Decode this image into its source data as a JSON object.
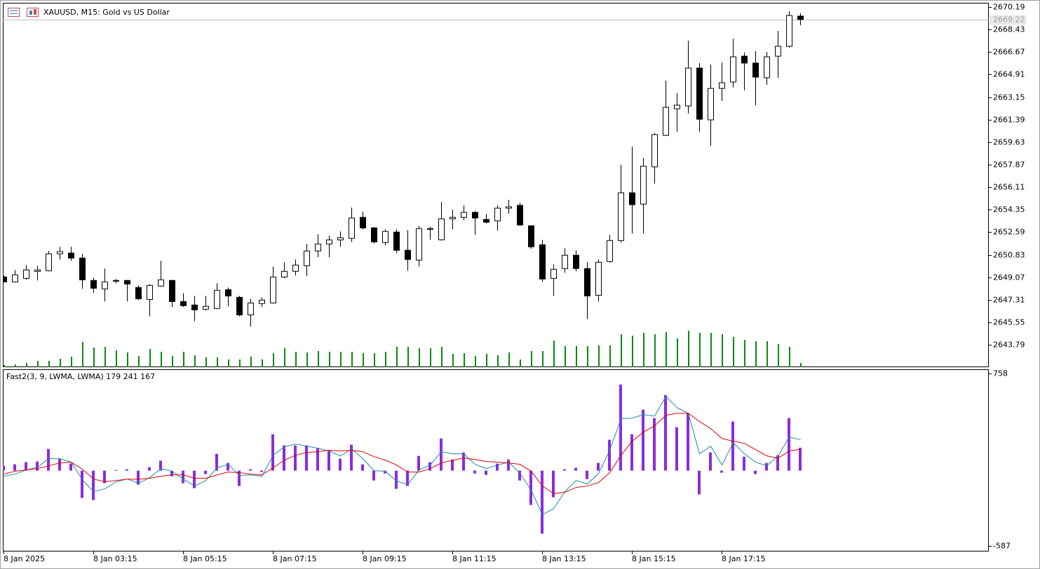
{
  "header": {
    "symbol_title": "XAUUSD, M15:  Gold vs US Dollar"
  },
  "chart_data": [
    {
      "type": "candlestick",
      "categories": [
        "8 Jan 2025",
        null,
        null,
        null,
        null,
        null,
        null,
        null,
        "8 Jan 03:15",
        null,
        null,
        null,
        null,
        null,
        null,
        null,
        "8 Jan 05:15",
        null,
        null,
        null,
        null,
        null,
        null,
        null,
        "8 Jan 07:15",
        null,
        null,
        null,
        null,
        null,
        null,
        null,
        "8 Jan 09:15",
        null,
        null,
        null,
        null,
        null,
        null,
        null,
        "8 Jan 11:15",
        null,
        null,
        null,
        null,
        null,
        null,
        null,
        "8 Jan 13:15",
        null,
        null,
        null,
        null,
        null,
        null,
        null,
        "8 Jan 15:15",
        null,
        null,
        null,
        null,
        null,
        null,
        null,
        "8 Jan 17:15",
        null,
        null,
        null,
        null,
        null,
        null,
        null
      ],
      "open": [
        2649.09,
        2648.71,
        2648.98,
        2649.53,
        2649.58,
        2650.9,
        2650.96,
        2650.57,
        2648.82,
        2648.16,
        2648.82,
        2648.82,
        2648.27,
        2647.33,
        2648.38,
        2648.82,
        2647.17,
        2646.9,
        2646.57,
        2646.63,
        2648.1,
        2647.5,
        2646.13,
        2647.01,
        2647.06,
        2649.09,
        2649.53,
        2649.97,
        2651.12,
        2651.67,
        2651.99,
        2652.11,
        2653.75,
        2652.93,
        2651.78,
        2652.6,
        2651.18,
        2650.41,
        2652.82,
        2652.0,
        2653.64,
        2653.75,
        2654.14,
        2653.59,
        2653.48,
        2654.47,
        2654.69,
        2653.09,
        2651.61,
        2648.98,
        2649.75,
        2650.79,
        2649.75,
        2647.66,
        2650.3,
        2651.94,
        2655.67,
        2654.79,
        2657.7,
        2660.16,
        2662.24,
        2662.46,
        2665.42,
        2661.37,
        2663.83,
        2664.33,
        2666.35,
        2665.81,
        2664.66,
        2666.35,
        2667.12,
        2669.48
      ],
      "high": [
        2649.2,
        2649.64,
        2650.02,
        2649.97,
        2651.12,
        2651.45,
        2651.45,
        2650.9,
        2649.04,
        2649.75,
        2648.93,
        2648.85,
        2648.43,
        2648.54,
        2650.35,
        2648.87,
        2647.83,
        2647.61,
        2647.61,
        2648.6,
        2648.27,
        2647.61,
        2647.39,
        2647.5,
        2649.91,
        2650.24,
        2650.46,
        2651.67,
        2652.43,
        2652.32,
        2652.65,
        2654.52,
        2654.19,
        2652.98,
        2652.82,
        2652.82,
        2652.76,
        2653.09,
        2653.04,
        2654.96,
        2654.36,
        2654.69,
        2654.25,
        2654.03,
        2654.69,
        2655.12,
        2654.9,
        2653.12,
        2651.99,
        2650.08,
        2651.34,
        2651.18,
        2650.24,
        2650.46,
        2652.38,
        2657.86,
        2659.29,
        2658.41,
        2660.33,
        2664.44,
        2663.45,
        2667.56,
        2665.81,
        2665.7,
        2665.86,
        2667.72,
        2666.63,
        2666.74,
        2666.68,
        2668.33,
        2669.86,
        2669.7
      ],
      "low": [
        2648.65,
        2648.65,
        2648.87,
        2648.82,
        2649.53,
        2650.46,
        2650.35,
        2648.16,
        2647.83,
        2647.17,
        2648.6,
        2647.17,
        2647.28,
        2646.02,
        2648.32,
        2646.74,
        2646.74,
        2645.64,
        2646.48,
        2646.57,
        2646.79,
        2646.02,
        2645.2,
        2646.74,
        2647.01,
        2648.98,
        2649.2,
        2649.15,
        2650.63,
        2650.63,
        2651.45,
        2651.83,
        2652.82,
        2651.72,
        2651.56,
        2650.96,
        2649.58,
        2649.91,
        2652.0,
        2651.94,
        2652.82,
        2653.53,
        2652.38,
        2653.26,
        2652.71,
        2654.03,
        2653.1,
        2651.29,
        2648.71,
        2647.61,
        2649.42,
        2649.53,
        2645.8,
        2647.17,
        2650.2,
        2651.78,
        2652.49,
        2652.49,
        2656.38,
        2660.11,
        2660.44,
        2661.86,
        2660.44,
        2659.34,
        2662.85,
        2663.89,
        2663.67,
        2662.52,
        2664.11,
        2664.66,
        2667.01,
        2668.77
      ],
      "close": [
        2648.71,
        2649.26,
        2649.64,
        2649.64,
        2650.9,
        2651.07,
        2650.57,
        2648.87,
        2648.21,
        2648.71,
        2648.76,
        2648.54,
        2647.39,
        2648.43,
        2648.87,
        2647.17,
        2646.85,
        2646.52,
        2646.79,
        2648.05,
        2647.61,
        2646.13,
        2647.06,
        2647.28,
        2649.09,
        2649.53,
        2650.02,
        2651.12,
        2651.67,
        2651.99,
        2652.16,
        2653.7,
        2652.93,
        2651.83,
        2652.65,
        2651.18,
        2650.46,
        2652.87,
        2652.87,
        2653.64,
        2653.75,
        2654.14,
        2653.7,
        2653.37,
        2654.47,
        2654.58,
        2653.15,
        2651.45,
        2648.93,
        2649.69,
        2650.79,
        2649.75,
        2647.61,
        2650.24,
        2651.94,
        2655.67,
        2654.74,
        2657.75,
        2660.22,
        2662.35,
        2662.52,
        2665.42,
        2661.42,
        2663.83,
        2664.27,
        2666.3,
        2665.81,
        2664.71,
        2666.3,
        2667.12,
        2669.53,
        2669.22
      ],
      "up_color": "#ffffff",
      "down_color": "#000000",
      "wick_color": "#000000",
      "current_price": 2669.22,
      "ylim": [
        2642.04,
        2670.52
      ],
      "yticks": [
        2670.19,
        2668.43,
        2666.67,
        2664.91,
        2663.15,
        2661.39,
        2659.63,
        2657.87,
        2656.11,
        2654.35,
        2652.59,
        2650.83,
        2649.07,
        2647.31,
        2645.55,
        2643.79
      ],
      "grid": false
    },
    {
      "type": "bar",
      "color": "#0b8a0b",
      "ylim": [
        0,
        100
      ],
      "values": [
        3,
        4,
        6,
        9,
        9,
        12,
        15,
        36,
        28,
        29,
        24,
        21,
        16,
        26,
        22,
        16,
        22,
        17,
        14,
        14,
        11,
        11,
        15,
        11,
        20,
        27,
        22,
        21,
        23,
        22,
        22,
        22,
        20,
        20,
        22,
        29,
        29,
        27,
        27,
        29,
        19,
        20,
        16,
        19,
        17,
        21,
        11,
        23,
        23,
        38,
        30,
        30,
        30,
        31,
        31,
        47,
        45,
        49,
        47,
        50,
        41,
        52,
        49,
        49,
        47,
        43,
        39,
        37,
        37,
        33,
        29,
        6
      ]
    },
    {
      "type": "indicator",
      "title": "Fast2(3, 9, LWMA, LWMA) 179 241 167",
      "ylim": [
        -631,
        791
      ],
      "yticks": [
        758,
        -587
      ],
      "series": [
        {
          "type": "bar",
          "color": "#8a2be2",
          "values": [
            38,
            49,
            66,
            71,
            169,
            93,
            55,
            -213,
            -230,
            -98,
            5,
            11,
            -109,
            27,
            77,
            -44,
            -98,
            -137,
            -27,
            131,
            60,
            -120,
            11,
            -11,
            284,
            197,
            197,
            197,
            175,
            159,
            93,
            202,
            49,
            -77,
            -22,
            -142,
            -120,
            115,
            66,
            251,
            87,
            142,
            -22,
            -33,
            55,
            87,
            -77,
            -268,
            -492,
            -208,
            11,
            22,
            -66,
            60,
            241,
            672,
            284,
            476,
            410,
            590,
            339,
            448,
            -186,
            142,
            -16,
            383,
            109,
            -27,
            60,
            120,
            410,
            179
          ]
        },
        {
          "type": "line",
          "color": "#1f8aa8",
          "values": [
            -44,
            -27,
            5,
            27,
            93,
            93,
            66,
            -71,
            -164,
            -142,
            -87,
            -66,
            -98,
            -55,
            16,
            -5,
            -66,
            -120,
            -77,
            22,
            49,
            -38,
            -33,
            -44,
            120,
            186,
            208,
            191,
            175,
            153,
            115,
            169,
            93,
            0,
            -5,
            -82,
            -109,
            5,
            44,
            148,
            131,
            131,
            49,
            16,
            44,
            66,
            -22,
            -153,
            -344,
            -295,
            -164,
            -77,
            -104,
            -22,
            159,
            405,
            410,
            437,
            426,
            580,
            492,
            448,
            131,
            191,
            44,
            219,
            131,
            66,
            38,
            115,
            262,
            241
          ]
        },
        {
          "type": "line",
          "color": "#e00000",
          "values": [
            -27,
            -5,
            5,
            16,
            38,
            60,
            66,
            11,
            -66,
            -87,
            -77,
            -66,
            -66,
            -60,
            -44,
            -33,
            -33,
            -60,
            -60,
            -33,
            -11,
            -16,
            -27,
            -33,
            22,
            82,
            120,
            142,
            148,
            159,
            153,
            159,
            148,
            109,
            82,
            44,
            -11,
            -11,
            16,
            60,
            82,
            98,
            87,
            71,
            66,
            60,
            49,
            -5,
            -120,
            -180,
            -169,
            -131,
            -120,
            -93,
            -16,
            120,
            230,
            301,
            350,
            432,
            448,
            448,
            383,
            328,
            251,
            230,
            213,
            164,
            115,
            98,
            153,
            167
          ]
        }
      ]
    }
  ]
}
